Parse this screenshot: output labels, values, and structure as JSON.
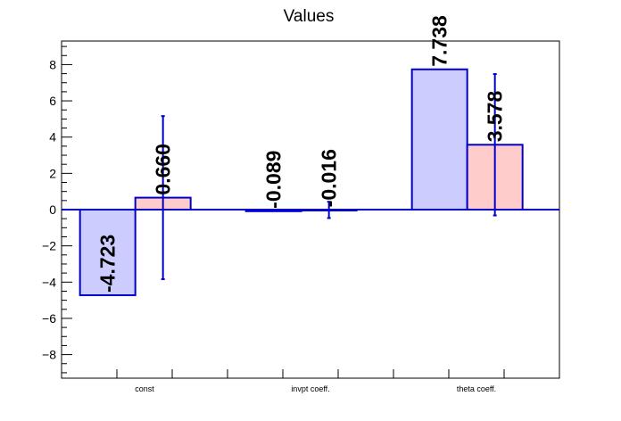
{
  "chart_data": {
    "type": "bar",
    "title": "Values",
    "categories": [
      "const",
      "invpt coeff.",
      "theta coeff."
    ],
    "series": [
      {
        "values": [
          -4.723,
          -0.089,
          7.738
        ],
        "labels": [
          "-4.723",
          "-0.089",
          "7.738"
        ],
        "errors": [
          0,
          0,
          0
        ],
        "fill": "#ccccff",
        "stroke": "#0000cc"
      },
      {
        "values": [
          0.66,
          -0.016,
          3.578
        ],
        "labels": [
          "0.660",
          "-0.016",
          "3.578"
        ],
        "errors": [
          4.5,
          0.45,
          3.9
        ],
        "fill": "#ffcccc",
        "stroke": "#0000cc"
      }
    ],
    "ylim": [
      -9.3,
      9.3
    ],
    "yticks": [
      -8,
      -6,
      -4,
      -2,
      0,
      2,
      4,
      6,
      8
    ],
    "ytick_labels": [
      "−8",
      "−6",
      "−4",
      "−2",
      "0",
      "2",
      "4",
      "6",
      "8"
    ],
    "xlabel": "",
    "ylabel": "",
    "grid": false,
    "legend": "none",
    "colors": {
      "axis": "#000000",
      "bar_outline": "#0000cc",
      "baseline": "#0000cc"
    }
  }
}
